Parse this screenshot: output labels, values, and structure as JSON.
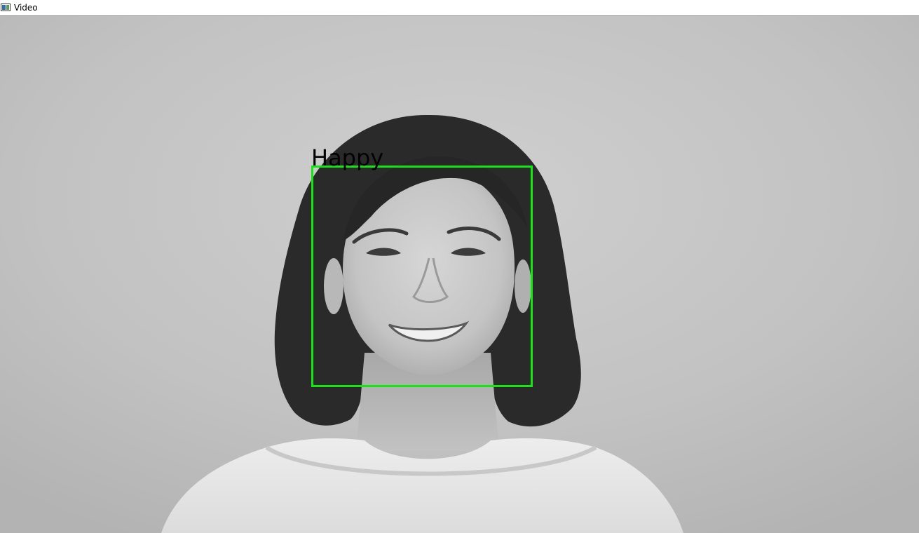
{
  "window": {
    "title": "Video",
    "icon": "app-window-icon"
  },
  "video": {
    "frame_description_icon": "webcam-frame",
    "detection": {
      "label": "Happy",
      "box_color": "#14e614",
      "label_color": "#000000"
    }
  }
}
